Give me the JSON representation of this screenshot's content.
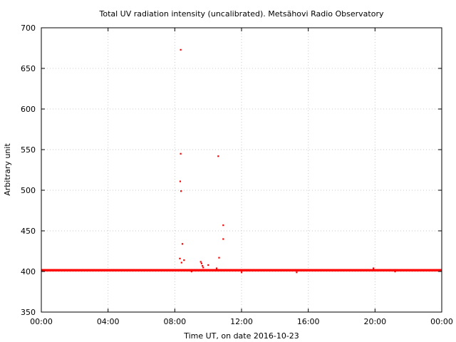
{
  "chart_data": {
    "type": "scatter",
    "title": "Total UV radiation intensity (uncalibrated). Metsähovi Radio Observatory",
    "xlabel": "Time UT, on date 2016-10-23",
    "ylabel": "Arbitrary unit",
    "xlim": [
      0,
      24
    ],
    "ylim": [
      350,
      700
    ],
    "x_ticks": [
      {
        "value": 0,
        "label": "00:00"
      },
      {
        "value": 4,
        "label": "04:00"
      },
      {
        "value": 8,
        "label": "08:00"
      },
      {
        "value": 12,
        "label": "12:00"
      },
      {
        "value": 16,
        "label": "16:00"
      },
      {
        "value": 20,
        "label": "20:00"
      },
      {
        "value": 24,
        "label": "00:00"
      }
    ],
    "y_ticks": [
      {
        "value": 350,
        "label": "350"
      },
      {
        "value": 400,
        "label": "400"
      },
      {
        "value": 450,
        "label": "450"
      },
      {
        "value": 500,
        "label": "500"
      },
      {
        "value": 550,
        "label": "550"
      },
      {
        "value": 600,
        "label": "600"
      },
      {
        "value": 650,
        "label": "650"
      },
      {
        "value": 700,
        "label": "700"
      }
    ],
    "grid": true,
    "series_color": "#ff0000",
    "baseline": {
      "x_start": 0,
      "x_end": 24,
      "y": 401.5,
      "spread": 1.5
    },
    "points": [
      {
        "x": 8.35,
        "y": 673
      },
      {
        "x": 8.35,
        "y": 545
      },
      {
        "x": 8.32,
        "y": 511
      },
      {
        "x": 8.37,
        "y": 499
      },
      {
        "x": 8.45,
        "y": 434
      },
      {
        "x": 8.3,
        "y": 416
      },
      {
        "x": 8.55,
        "y": 414
      },
      {
        "x": 8.4,
        "y": 411
      },
      {
        "x": 9.55,
        "y": 412
      },
      {
        "x": 9.6,
        "y": 410
      },
      {
        "x": 9.65,
        "y": 407
      },
      {
        "x": 9.7,
        "y": 405
      },
      {
        "x": 10.0,
        "y": 408
      },
      {
        "x": 10.6,
        "y": 542
      },
      {
        "x": 10.9,
        "y": 457
      },
      {
        "x": 10.9,
        "y": 440
      },
      {
        "x": 10.65,
        "y": 417
      },
      {
        "x": 10.5,
        "y": 404
      },
      {
        "x": 9.0,
        "y": 400
      },
      {
        "x": 12.0,
        "y": 399
      },
      {
        "x": 15.3,
        "y": 399
      },
      {
        "x": 19.9,
        "y": 404
      },
      {
        "x": 21.2,
        "y": 400
      }
    ]
  }
}
